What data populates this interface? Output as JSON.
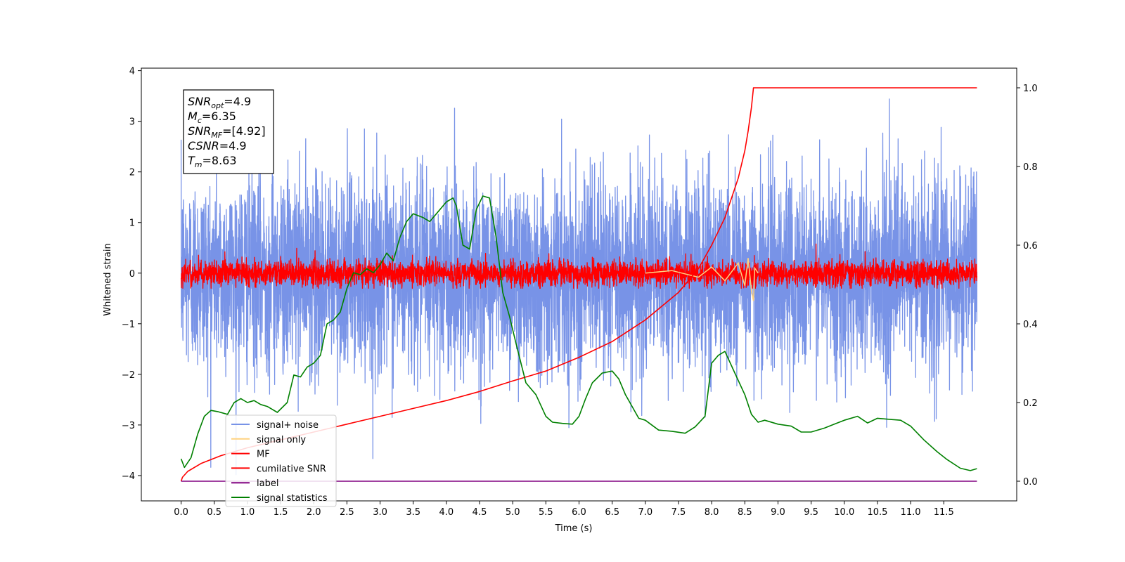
{
  "chart_data": {
    "type": "line",
    "xlabel": "Time (s)",
    "ylabel": "Whitened strain",
    "xlim": [
      -0.6,
      12.6
    ],
    "ylim": [
      -4.5,
      4.05
    ],
    "y2lim": [
      -0.05,
      1.05
    ],
    "x_ticks": [
      0.0,
      0.5,
      1.0,
      1.5,
      2.0,
      2.5,
      3.0,
      3.5,
      4.0,
      4.5,
      5.0,
      5.5,
      6.0,
      6.5,
      7.0,
      7.5,
      8.0,
      8.5,
      9.0,
      9.5,
      10.0,
      10.5,
      11.0,
      11.5
    ],
    "x_tick_labels": [
      "0.0",
      "0.5",
      "1.0",
      "1.5",
      "2.0",
      "2.5",
      "3.0",
      "3.5",
      "4.0",
      "4.5",
      "5.0",
      "5.5",
      "6.0",
      "6.5",
      "7.0",
      "7.5",
      "8.0",
      "8.5",
      "9.0",
      "9.5",
      "10.0",
      "10.5",
      "11.0",
      "11.5"
    ],
    "y_ticks": [
      4,
      3,
      2,
      1,
      0,
      -1,
      -2,
      -3,
      -4
    ],
    "y_tick_labels": [
      "4",
      "3",
      "2",
      "1",
      "0",
      "−1",
      "−2",
      "−3",
      "−4"
    ],
    "y2_ticks": [
      1.0,
      0.8,
      0.6,
      0.4,
      0.2,
      0.0
    ],
    "y2_tick_labels": [
      "1.0",
      "0.8",
      "0.6",
      "0.4",
      "0.2",
      "0.0"
    ],
    "grid": false,
    "legend_position": "lower-left",
    "series": [
      {
        "name": "signal+ noise",
        "color": "#7893e7",
        "axis": "left",
        "kind": "noise",
        "x_range": [
          0.0,
          12.0
        ],
        "amplitude_std": 0.95,
        "observed_extremes": {
          "max": 3.65,
          "min": -4.15
        }
      },
      {
        "name": "signal only",
        "color": "#ffd27f",
        "axis": "left",
        "x": [
          7.0,
          7.4,
          7.8,
          8.0,
          8.2,
          8.4,
          8.5,
          8.55,
          8.6,
          8.63,
          8.65,
          8.7
        ],
        "y": [
          0.0,
          0.05,
          -0.08,
          0.12,
          -0.15,
          0.2,
          -0.25,
          0.3,
          -0.35,
          -0.55,
          0.1,
          0.0
        ]
      },
      {
        "name": "MF",
        "color": "#ff0000",
        "axis": "left",
        "kind": "noise",
        "x_range": [
          0.0,
          12.0
        ],
        "amplitude_std": 0.13,
        "observed_extremes": {
          "max": 1.0,
          "min": -0.3
        }
      },
      {
        "name": "cumilative SNR",
        "color": "#ff0000",
        "axis": "right",
        "x": [
          0.0,
          0.02,
          0.1,
          0.3,
          0.6,
          1.0,
          1.5,
          2.0,
          2.5,
          3.0,
          3.5,
          4.0,
          4.5,
          5.0,
          5.5,
          6.0,
          6.5,
          7.0,
          7.5,
          7.8,
          8.0,
          8.2,
          8.4,
          8.5,
          8.55,
          8.6,
          8.63,
          12.0
        ],
        "y": [
          0.0,
          0.01,
          0.025,
          0.045,
          0.065,
          0.085,
          0.105,
          0.125,
          0.145,
          0.165,
          0.185,
          0.205,
          0.228,
          0.255,
          0.28,
          0.315,
          0.355,
          0.41,
          0.48,
          0.54,
          0.6,
          0.67,
          0.77,
          0.84,
          0.89,
          0.95,
          1.0,
          1.0
        ]
      },
      {
        "name": "label",
        "color": "#800080",
        "axis": "right",
        "x": [
          0.0,
          12.0
        ],
        "y": [
          0.0,
          0.0
        ]
      },
      {
        "name": "signal statistics",
        "color": "#008000",
        "axis": "right",
        "x": [
          0.0,
          0.05,
          0.15,
          0.25,
          0.35,
          0.45,
          0.55,
          0.7,
          0.8,
          0.9,
          1.0,
          1.1,
          1.2,
          1.3,
          1.45,
          1.6,
          1.7,
          1.8,
          1.9,
          2.0,
          2.1,
          2.2,
          2.3,
          2.4,
          2.5,
          2.6,
          2.7,
          2.8,
          2.9,
          3.0,
          3.1,
          3.2,
          3.3,
          3.4,
          3.5,
          3.65,
          3.75,
          3.85,
          4.0,
          4.1,
          4.15,
          4.25,
          4.35,
          4.45,
          4.55,
          4.65,
          4.75,
          4.85,
          4.95,
          5.05,
          5.2,
          5.35,
          5.5,
          5.6,
          5.75,
          5.9,
          6.0,
          6.1,
          6.2,
          6.35,
          6.5,
          6.6,
          6.7,
          6.8,
          6.9,
          7.0,
          7.2,
          7.4,
          7.6,
          7.75,
          7.9,
          8.0,
          8.1,
          8.2,
          8.35,
          8.5,
          8.6,
          8.7,
          8.8,
          9.0,
          9.2,
          9.35,
          9.5,
          9.7,
          9.85,
          10.0,
          10.2,
          10.35,
          10.5,
          10.7,
          10.85,
          11.0,
          11.2,
          11.4,
          11.55,
          11.75,
          11.9,
          12.0
        ],
        "y": [
          0.057,
          0.035,
          0.06,
          0.12,
          0.165,
          0.18,
          0.177,
          0.17,
          0.2,
          0.21,
          0.2,
          0.205,
          0.195,
          0.19,
          0.175,
          0.2,
          0.27,
          0.265,
          0.29,
          0.3,
          0.32,
          0.4,
          0.41,
          0.43,
          0.49,
          0.53,
          0.525,
          0.54,
          0.53,
          0.55,
          0.58,
          0.56,
          0.62,
          0.66,
          0.68,
          0.67,
          0.66,
          0.68,
          0.71,
          0.72,
          0.7,
          0.6,
          0.59,
          0.69,
          0.725,
          0.72,
          0.62,
          0.48,
          0.42,
          0.35,
          0.25,
          0.22,
          0.165,
          0.15,
          0.147,
          0.145,
          0.165,
          0.21,
          0.25,
          0.275,
          0.28,
          0.26,
          0.22,
          0.19,
          0.16,
          0.155,
          0.13,
          0.127,
          0.122,
          0.138,
          0.165,
          0.3,
          0.32,
          0.33,
          0.275,
          0.22,
          0.17,
          0.15,
          0.155,
          0.145,
          0.14,
          0.125,
          0.125,
          0.135,
          0.145,
          0.155,
          0.165,
          0.148,
          0.16,
          0.157,
          0.155,
          0.14,
          0.105,
          0.075,
          0.055,
          0.033,
          0.027,
          0.032
        ]
      }
    ],
    "annotation_box": [
      {
        "base": "SNR",
        "sub": "opt",
        "value": "=4.9"
      },
      {
        "base": "M",
        "sub": "c",
        "value": "=6.35"
      },
      {
        "base": "SNR",
        "sub": "MF",
        "value": "=[4.92]"
      },
      {
        "base": "CSNR",
        "sub": "",
        "value": "=4.9"
      },
      {
        "base": "T",
        "sub": "m",
        "value": "=8.63"
      }
    ]
  }
}
